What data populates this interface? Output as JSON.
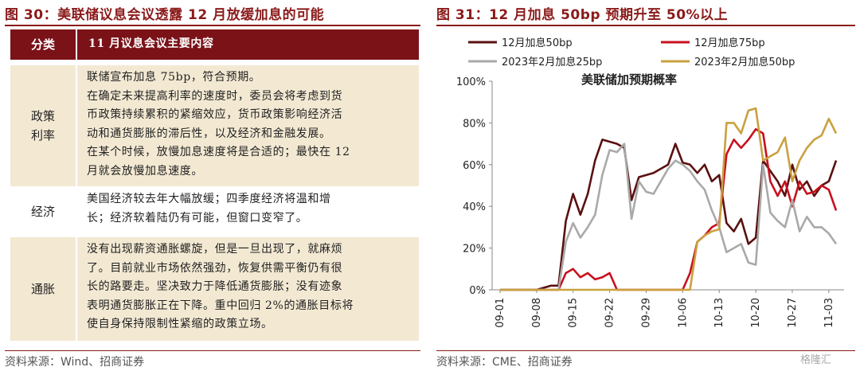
{
  "left": {
    "title": "图 30：美联储议息会议透露 12 月放缓加息的可能",
    "table": {
      "headers": [
        "分类",
        "11 月议息会议主要内容"
      ],
      "rows": [
        {
          "category": "政策\n利率",
          "lines": [
            "联储宣布加息 75bp，符合预期。",
            "在确定未来提高利率的速度时，委员会将考虑到货",
            "币政策持续累积的紧缩效应，货币政策影响经济活",
            "动和通货膨胀的滞后性，以及经济和金融发展。",
            "在某个时候，放慢加息速度将是合适的；最快在 12",
            "月就会放慢加息速度。"
          ]
        },
        {
          "category": "经济",
          "lines": [
            "美国经济较去年大幅放缓；四季度经济将温和增",
            "长；经济软着陆仍有可能，但窗口变窄了。"
          ]
        },
        {
          "category": "通胀",
          "lines": [
            "没有出现薪资通胀螺旋，但是一旦出现了，就麻烦",
            "了。目前就业市场依然强劲，恢复供需平衡仍有很",
            "长的路要走。坚决致力于降低通货膨胀；没有迹象",
            "表明通货膨胀正在下降。重中回归 2%的通胀目标将",
            "使自身保持限制性紧缩的政策立场。"
          ]
        }
      ]
    },
    "source": "资料来源：Wind、招商证券"
  },
  "right": {
    "title": "图 31：12 月加息 50bp 预期升至 50%以上",
    "source": "资料来源：CME、招商证券",
    "watermark": "格隆汇"
  },
  "chart_data": {
    "type": "line",
    "title": "美联储加预期概率",
    "xlabel": "",
    "ylabel": "",
    "ylim": [
      0,
      100
    ],
    "yticks": [
      "0%",
      "20%",
      "40%",
      "60%",
      "80%",
      "100%"
    ],
    "xticks": [
      "09-01",
      "09-08",
      "09-15",
      "09-22",
      "09-29",
      "10-06",
      "10-13",
      "10-20",
      "10-27",
      "11-03"
    ],
    "grid": false,
    "legend_position": "top",
    "colors": {
      "dec50": "#5a1010",
      "dec75": "#c8101e",
      "feb25": "#a9a9a9",
      "feb50": "#c9a13f",
      "axis": "#888888"
    },
    "x": [
      "09-01",
      "09-02",
      "09-05",
      "09-06",
      "09-07",
      "09-08",
      "09-09",
      "09-12",
      "09-13",
      "09-14",
      "09-15",
      "09-16",
      "09-19",
      "09-20",
      "09-21",
      "09-22",
      "09-23",
      "09-26",
      "09-27",
      "09-28",
      "09-29",
      "09-30",
      "10-03",
      "10-04",
      "10-05",
      "10-06",
      "10-07",
      "10-10",
      "10-11",
      "10-12",
      "10-13",
      "10-14",
      "10-17",
      "10-18",
      "10-19",
      "10-20",
      "10-21",
      "10-24",
      "10-25",
      "10-26",
      "10-27",
      "10-28",
      "10-31",
      "11-01",
      "11-02",
      "11-03",
      "11-04"
    ],
    "series": [
      {
        "name": "12月加息50bp",
        "key": "dec50",
        "values": [
          0,
          0,
          0,
          0,
          0,
          0,
          1,
          2,
          2,
          33,
          46,
          36,
          46,
          62,
          72,
          71,
          70,
          68,
          43,
          54,
          55,
          56,
          58,
          60,
          70,
          61,
          60,
          56,
          60,
          52,
          55,
          32,
          28,
          34,
          22,
          25,
          62,
          57,
          52,
          45,
          60,
          48,
          52,
          45,
          50,
          52,
          62
        ]
      },
      {
        "name": "12月加息75bp",
        "key": "dec75",
        "values": [
          0,
          0,
          0,
          0,
          0,
          0,
          0,
          0,
          0,
          8,
          10,
          6,
          8,
          5,
          6,
          8,
          0,
          0,
          0,
          0,
          0,
          0,
          0,
          0,
          0,
          0,
          8,
          23,
          26,
          30,
          32,
          65,
          72,
          68,
          72,
          77,
          75,
          52,
          45,
          52,
          40,
          52,
          46,
          47,
          50,
          48,
          38
        ]
      },
      {
        "name": "2023年2月加息25bp",
        "key": "feb25",
        "values": [
          0,
          0,
          0,
          0,
          0,
          0,
          0,
          0,
          0,
          23,
          32,
          25,
          30,
          36,
          55,
          67,
          66,
          70,
          34,
          52,
          47,
          46,
          52,
          58,
          62,
          60,
          57,
          52,
          48,
          38,
          30,
          18,
          20,
          22,
          13,
          12,
          60,
          37,
          33,
          30,
          43,
          28,
          35,
          30,
          30,
          27,
          22
        ]
      },
      {
        "name": "2023年2月加息50bp",
        "key": "feb50",
        "values": [
          0,
          0,
          0,
          0,
          0,
          0,
          0,
          0,
          0,
          0,
          0,
          0,
          0,
          0,
          0,
          0,
          0,
          0,
          0,
          0,
          0,
          0,
          0,
          0,
          0,
          0,
          0,
          23,
          26,
          28,
          29,
          80,
          80,
          75,
          86,
          87,
          62,
          64,
          66,
          73,
          52,
          62,
          68,
          72,
          74,
          82,
          75
        ]
      }
    ]
  }
}
